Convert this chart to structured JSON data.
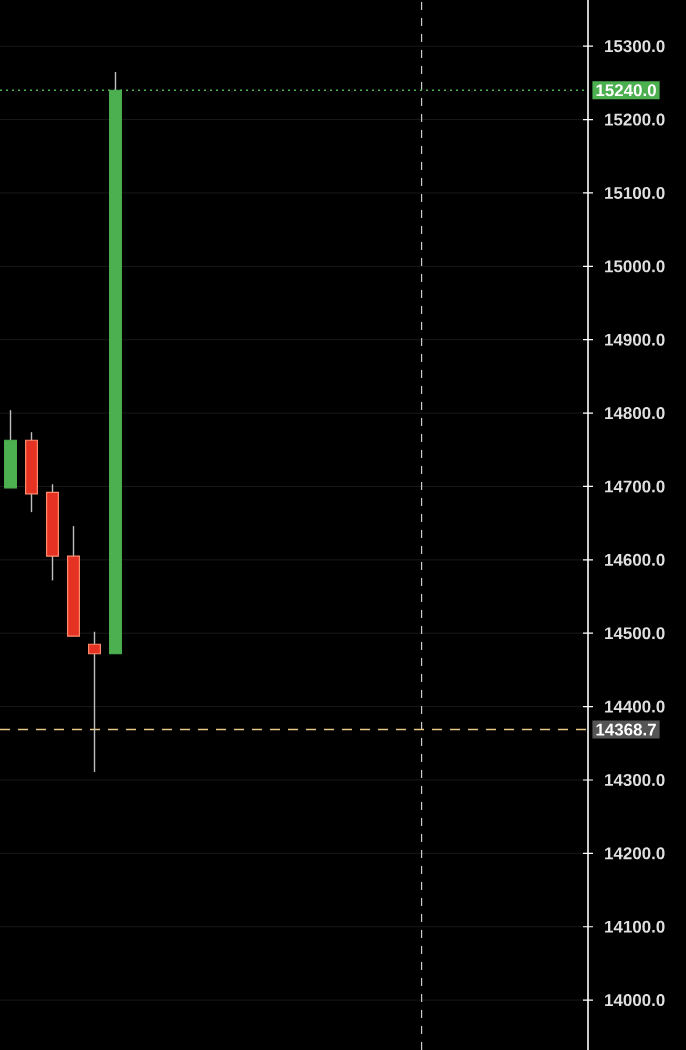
{
  "chart_data": {
    "type": "candlestick",
    "categories": [
      null,
      null,
      null,
      null,
      null,
      null,
      null,
      null,
      null,
      null,
      null,
      null,
      null,
      null,
      null,
      null,
      null,
      null,
      null,
      null,
      null,
      null,
      null,
      null,
      null,
      null,
      null,
      null
    ],
    "ohlc": [
      [
        14698,
        14804,
        14698,
        14763
      ],
      [
        14763,
        14774,
        14665,
        14690
      ],
      [
        14692,
        14703,
        14572,
        14605
      ],
      [
        14605,
        14646,
        14496,
        14496
      ],
      [
        14485,
        14502,
        14311,
        14472
      ],
      [
        14472,
        15265,
        14472,
        15240
      ],
      null,
      null,
      null,
      null,
      null,
      null,
      null,
      null,
      null,
      null,
      null,
      null,
      null,
      null,
      null,
      null,
      null,
      null,
      null,
      null,
      null,
      null
    ],
    "colors": [
      "#4caf50",
      "#e53222",
      "#e53222",
      "#e53222",
      "#e53222",
      "#4caf50",
      null,
      null,
      null,
      null,
      null,
      null,
      null,
      null,
      null,
      null,
      null,
      null,
      null,
      null,
      null,
      null,
      null,
      null,
      null,
      null,
      null,
      null
    ],
    "ylim": [
      13932,
      15363
    ],
    "yticks": [
      {
        "value": 14000,
        "label": "14000.0"
      },
      {
        "value": 14100,
        "label": "14100.0"
      },
      {
        "value": 14200,
        "label": "14200.0"
      },
      {
        "value": 14300,
        "label": "14300.0"
      },
      {
        "value": 14400,
        "label": "14400.0"
      },
      {
        "value": 14500,
        "label": "14500.0"
      },
      {
        "value": 14600,
        "label": "14600.0"
      },
      {
        "value": 14700,
        "label": "14700.0"
      },
      {
        "value": 14800,
        "label": "14800.0"
      },
      {
        "value": 14900,
        "label": "14900.0"
      },
      {
        "value": 15000,
        "label": "15000.0"
      },
      {
        "value": 15100,
        "label": "15100.0"
      },
      {
        "value": 15200,
        "label": "15200.0"
      },
      {
        "value": 15300,
        "label": "15300.0"
      }
    ],
    "ref_lines": [
      {
        "axis": "y",
        "value": 15240,
        "label": "15240.0",
        "color": "#4caf50",
        "line_style": "dotted"
      },
      {
        "axis": "y",
        "value": 14368.7,
        "label": "14368.7",
        "color": "#e8c784",
        "line_style": "dashed"
      }
    ],
    "grid": "y",
    "tick_labels": "y"
  }
}
